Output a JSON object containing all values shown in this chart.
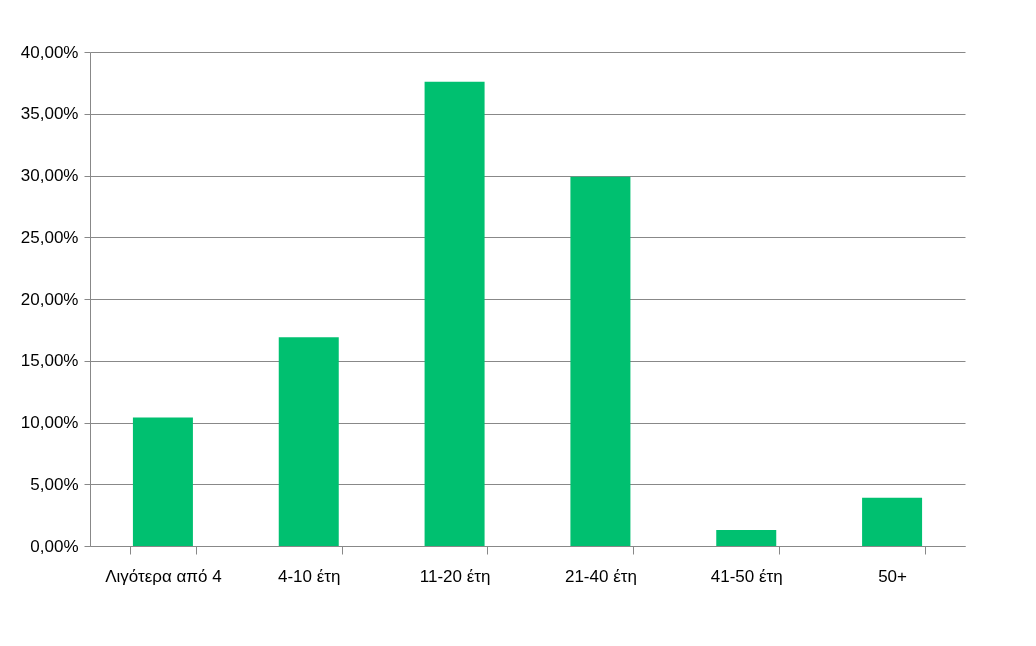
{
  "chart_data": {
    "type": "bar",
    "categories": [
      "Λιγότερα από 4",
      "4-10 έτη",
      "11-20 έτη",
      "21-40 έτη",
      "41-50 έτη",
      "50+"
    ],
    "values": [
      10.4,
      16.9,
      37.6,
      29.9,
      1.3,
      3.9
    ],
    "color": "#00c070",
    "ylim": [
      0,
      40
    ],
    "yticks": [
      {
        "value": 0,
        "label": "0,00%"
      },
      {
        "value": 5,
        "label": "5,00%"
      },
      {
        "value": 10,
        "label": "10,00%"
      },
      {
        "value": 15,
        "label": "15,00%"
      },
      {
        "value": 20,
        "label": "20,00%"
      },
      {
        "value": 25,
        "label": "25,00%"
      },
      {
        "value": 30,
        "label": "30,00%"
      },
      {
        "value": 35,
        "label": "35,00%"
      },
      {
        "value": 40,
        "label": "40,00%"
      }
    ],
    "grid": "y"
  }
}
